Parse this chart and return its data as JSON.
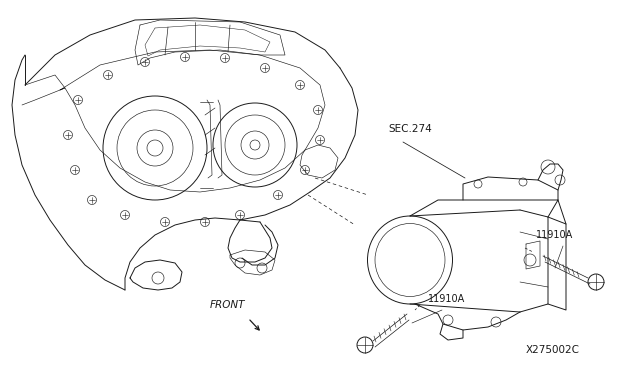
{
  "background_color": "#ffffff",
  "line_color": "#1a1a1a",
  "text_color": "#1a1a1a",
  "labels": {
    "sec274": "SEC.274",
    "11910A_1": "11910A",
    "11910A_2": "11910A",
    "front": "FRONT",
    "diagram_code": "X275002C"
  },
  "font_size_small": 7,
  "font_size_code": 7.5,
  "lw_main": 0.7,
  "lw_thin": 0.45,
  "lw_dashed": 0.5
}
